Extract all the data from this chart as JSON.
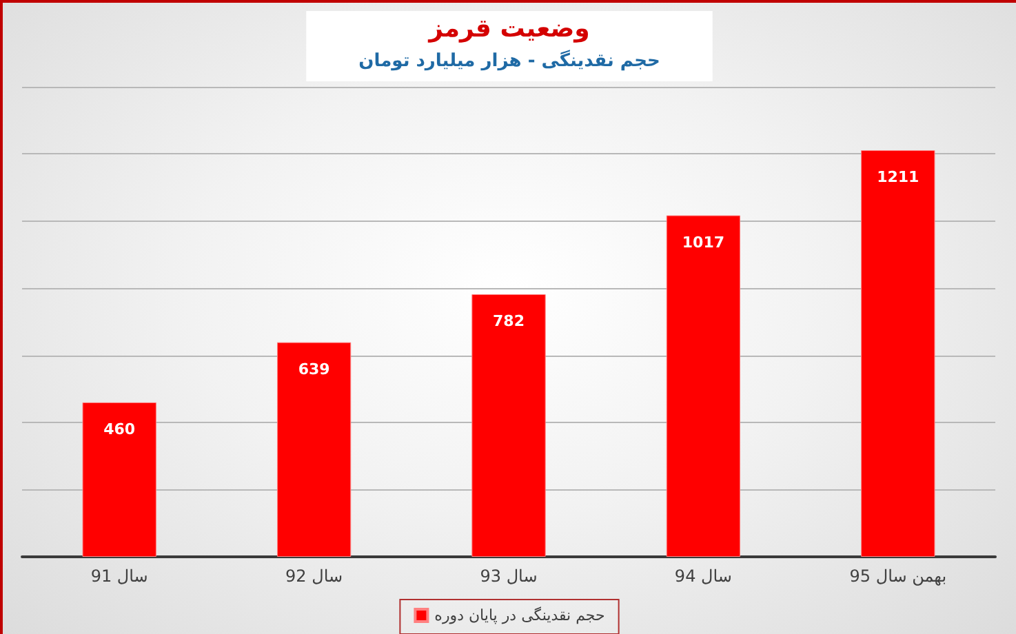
{
  "chart_data": {
    "type": "bar",
    "title": "وضعیت قرمز",
    "subtitle": "حجم نقدینگی - هزار میلیارد تومان",
    "categories": [
      "سال 91",
      "سال 92",
      "سال 93",
      "سال 94",
      "بهمن سال 95"
    ],
    "series": [
      {
        "name": "حجم نقدینگی در پایان دوره",
        "color": "#ff0000",
        "values": [
          460,
          639,
          782,
          1017,
          1211
        ]
      }
    ],
    "ylim": [
      0,
      1400
    ],
    "yticks": [
      {
        "value": 0,
        "label": null
      },
      {
        "value": 200,
        "label": null
      },
      {
        "value": 400,
        "label": null
      },
      {
        "value": 600,
        "label": null
      },
      {
        "value": 800,
        "label": null
      },
      {
        "value": 1000,
        "label": null
      },
      {
        "value": 1200,
        "label": null
      },
      {
        "value": 1400,
        "label": null
      }
    ],
    "tick_labels": "x",
    "grid": "y",
    "legend": "bottom",
    "data_labels": true
  }
}
